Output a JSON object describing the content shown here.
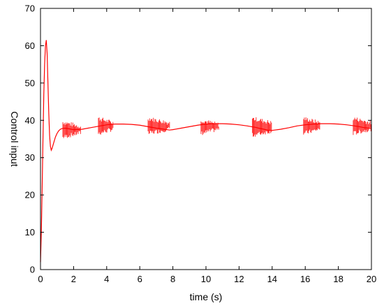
{
  "chart_data": {
    "type": "line",
    "title": "",
    "xlabel": "time (s)",
    "ylabel": "Control input",
    "xlim": [
      0,
      20
    ],
    "ylim": [
      0,
      70
    ],
    "xticks": [
      0,
      2,
      4,
      6,
      8,
      10,
      12,
      14,
      16,
      18,
      20
    ],
    "yticks": [
      0,
      10,
      20,
      30,
      40,
      50,
      60,
      70
    ],
    "grid": false,
    "legend": "none",
    "series": [
      {
        "color": "#ff0000",
        "x": [
          0,
          0.05,
          0.1,
          0.15,
          0.2,
          0.25,
          0.3,
          0.35,
          0.4,
          0.45,
          0.5,
          0.55,
          0.6,
          0.65,
          0.7,
          0.8,
          0.9,
          1.0,
          1.1,
          1.2,
          1.3,
          1.5,
          2.0,
          2.5,
          3.0,
          3.5,
          4.0,
          4.5,
          5.0,
          5.5,
          6.0,
          6.5,
          7.0,
          7.5,
          7.8,
          8.0,
          8.5,
          9.0,
          9.5,
          10.0,
          10.5,
          11.0,
          11.5,
          12.0,
          12.5,
          13.0,
          13.5,
          13.8,
          14.0,
          14.5,
          15.0,
          15.5,
          16.0,
          16.5,
          17.0,
          17.5,
          18.0,
          18.5,
          19.0,
          19.5,
          20.0
        ],
        "y": [
          2,
          10,
          22,
          35,
          47,
          55,
          60,
          61.5,
          58,
          50,
          42,
          36,
          33,
          32,
          32.5,
          34,
          35.5,
          36.5,
          37.2,
          37.6,
          37.8,
          37.9,
          37.5,
          37.6,
          38,
          38.4,
          38.8,
          39,
          39,
          38.9,
          38.7,
          38.3,
          37.9,
          37.6,
          37.4,
          37.5,
          37.9,
          38.3,
          38.7,
          39,
          39.1,
          39.1,
          39,
          38.8,
          38.5,
          38.1,
          37.6,
          37.3,
          37.3,
          37.6,
          38,
          38.5,
          38.8,
          39,
          39.1,
          39.1,
          39,
          38.8,
          38.5,
          38.1,
          37.8
        ]
      }
    ],
    "chatter_bands": [
      {
        "x_start": 1.35,
        "x_end": 2.45,
        "y_low": 35.5,
        "y_high": 39.5
      },
      {
        "x_start": 3.5,
        "x_end": 4.4,
        "y_low": 36.5,
        "y_high": 40.5
      },
      {
        "x_start": 6.5,
        "x_end": 7.8,
        "y_low": 36.5,
        "y_high": 40.5
      },
      {
        "x_start": 9.7,
        "x_end": 10.8,
        "y_low": 36.5,
        "y_high": 40.0
      },
      {
        "x_start": 12.8,
        "x_end": 14.0,
        "y_low": 36.0,
        "y_high": 40.5
      },
      {
        "x_start": 15.9,
        "x_end": 16.9,
        "y_low": 36.5,
        "y_high": 40.5
      },
      {
        "x_start": 18.9,
        "x_end": 20.0,
        "y_low": 36.5,
        "y_high": 40.5
      }
    ]
  }
}
